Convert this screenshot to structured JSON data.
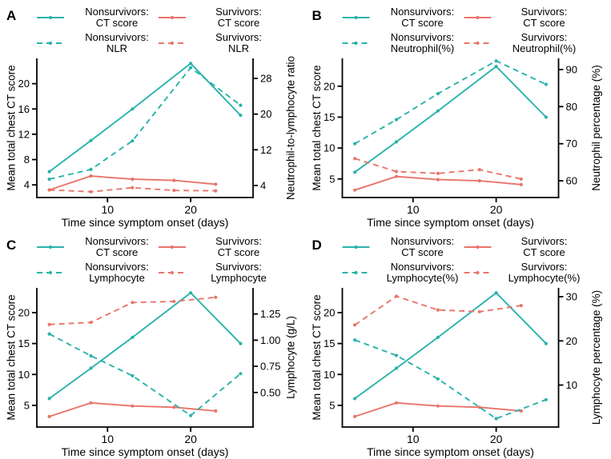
{
  "figure": {
    "background": "#ffffff",
    "text_color": "#000000",
    "colors": {
      "nonsurvivors": "#29b3aa",
      "survivors": "#e8756a"
    },
    "xlabel": "Time since symptom onset (days)",
    "left_ylabel": "Mean total chest CT score"
  },
  "chart_data": [
    {
      "panel_label": "A",
      "type": "line",
      "xlabel": "Time since symptom onset (days)",
      "ylabel_left": "Mean total chest CT score",
      "ylabel_right": "Neutrophil-to-lymphocyte ratio",
      "x_ticks": [
        "10",
        "20"
      ],
      "x_range": [
        1.5,
        27.5
      ],
      "left_ticks": [
        "4",
        "8",
        "12",
        "16",
        "20"
      ],
      "left_range": [
        2,
        24
      ],
      "right_ticks": [
        "4",
        "12",
        "20",
        "28"
      ],
      "right_range": [
        1.3,
        32.5
      ],
      "grid": false,
      "legend_position": "top",
      "legend": [
        {
          "line1": "Nonsurvivors:",
          "line2": "CT score",
          "color": "nonsurvivors",
          "dashed": false
        },
        {
          "line1": "Survivors:",
          "line2": "CT score",
          "color": "survivors",
          "dashed": false
        },
        {
          "line1": "Nonsurvivors:",
          "line2": "NLR",
          "color": "nonsurvivors",
          "dashed": true
        },
        {
          "line1": "Survivors:",
          "line2": "NLR",
          "color": "survivors",
          "dashed": true
        }
      ],
      "series": [
        {
          "name": "Nonsurvivors: CT score",
          "axis": "left",
          "color": "nonsurvivors",
          "dashed": false,
          "x": [
            3,
            8,
            13,
            20,
            26
          ],
          "y": [
            6.1,
            11,
            16,
            23.2,
            15
          ]
        },
        {
          "name": "Survivors: CT score",
          "axis": "left",
          "color": "survivors",
          "dashed": false,
          "x": [
            3,
            8,
            13,
            18,
            23
          ],
          "y": [
            3.2,
            5.4,
            4.9,
            4.7,
            4.1
          ]
        },
        {
          "name": "Nonsurvivors: NLR",
          "axis": "right",
          "color": "nonsurvivors",
          "dashed": true,
          "x": [
            3,
            8,
            13,
            20,
            26
          ],
          "y": [
            5.4,
            7.6,
            14,
            30.4,
            22
          ]
        },
        {
          "name": "Survivors: NLR",
          "axis": "right",
          "color": "survivors",
          "dashed": true,
          "x": [
            3,
            8,
            13,
            18,
            23
          ],
          "y": [
            3.0,
            2.6,
            3.5,
            2.9,
            2.8
          ]
        }
      ]
    },
    {
      "panel_label": "B",
      "type": "line",
      "xlabel": "Time since symptom onset (days)",
      "ylabel_left": "Mean total chest CT score",
      "ylabel_right": "Neutrophil percentage (%)",
      "x_ticks": [
        "10",
        "20"
      ],
      "x_range": [
        1.5,
        27.5
      ],
      "left_ticks": [
        "5",
        "10",
        "15",
        "20"
      ],
      "left_range": [
        2,
        24.5
      ],
      "right_ticks": [
        "60",
        "70",
        "80",
        "90"
      ],
      "right_range": [
        55.5,
        93
      ],
      "grid": false,
      "legend_position": "top",
      "legend": [
        {
          "line1": "Nonsurvivors:",
          "line2": "CT score",
          "color": "nonsurvivors",
          "dashed": false
        },
        {
          "line1": "Survivors:",
          "line2": "CT score",
          "color": "survivors",
          "dashed": false
        },
        {
          "line1": "Nonsurvivors:",
          "line2": "Neutrophil(%)",
          "color": "nonsurvivors",
          "dashed": true
        },
        {
          "line1": "Survivors:",
          "line2": "Neutrophil(%)",
          "color": "survivors",
          "dashed": true
        }
      ],
      "series": [
        {
          "name": "Nonsurvivors: CT score",
          "axis": "left",
          "color": "nonsurvivors",
          "dashed": false,
          "x": [
            3,
            8,
            13,
            20,
            26
          ],
          "y": [
            6.1,
            11,
            16,
            23.2,
            15
          ]
        },
        {
          "name": "Survivors: CT score",
          "axis": "left",
          "color": "survivors",
          "dashed": false,
          "x": [
            3,
            8,
            13,
            18,
            23
          ],
          "y": [
            3.2,
            5.4,
            4.9,
            4.7,
            4.1
          ]
        },
        {
          "name": "Nonsurvivors: Neutrophil(%)",
          "axis": "right",
          "color": "nonsurvivors",
          "dashed": true,
          "x": [
            3,
            8,
            13,
            20,
            26
          ],
          "y": [
            70,
            76.5,
            83.5,
            92.3,
            86
          ]
        },
        {
          "name": "Survivors: Neutrophil(%)",
          "axis": "right",
          "color": "survivors",
          "dashed": true,
          "x": [
            3,
            8,
            13,
            18,
            23
          ],
          "y": [
            66,
            62.5,
            62,
            63,
            60.5
          ]
        }
      ]
    },
    {
      "panel_label": "C",
      "type": "line",
      "xlabel": "Time since symptom onset (days)",
      "ylabel_left": "Mean total chest CT score",
      "ylabel_right": "Lymphocyte (g/L)",
      "x_ticks": [
        "10",
        "20"
      ],
      "x_range": [
        1.5,
        27.5
      ],
      "left_ticks": [
        "5",
        "10",
        "15",
        "20"
      ],
      "left_range": [
        1.5,
        24
      ],
      "right_ticks": [
        "0.50",
        "0.75",
        "1.00",
        "1.25"
      ],
      "right_range": [
        0.17,
        1.5
      ],
      "grid": false,
      "legend_position": "top",
      "legend": [
        {
          "line1": "Nonsurvivors:",
          "line2": "CT score",
          "color": "nonsurvivors",
          "dashed": false
        },
        {
          "line1": "Survivors:",
          "line2": "CT score",
          "color": "survivors",
          "dashed": false
        },
        {
          "line1": "Nonsurvivors:",
          "line2": "Lymphocyte",
          "color": "nonsurvivors",
          "dashed": true
        },
        {
          "line1": "Survivors:",
          "line2": "Lymphocyte",
          "color": "survivors",
          "dashed": true
        }
      ],
      "series": [
        {
          "name": "Nonsurvivors: CT score",
          "axis": "left",
          "color": "nonsurvivors",
          "dashed": false,
          "x": [
            3,
            8,
            13,
            20,
            26
          ],
          "y": [
            6.1,
            11,
            16,
            23.2,
            15
          ]
        },
        {
          "name": "Survivors: CT score",
          "axis": "left",
          "color": "survivors",
          "dashed": false,
          "x": [
            3,
            8,
            13,
            18,
            23
          ],
          "y": [
            3.2,
            5.4,
            4.9,
            4.7,
            4.1
          ]
        },
        {
          "name": "Nonsurvivors: Lymphocyte",
          "axis": "right",
          "color": "nonsurvivors",
          "dashed": true,
          "x": [
            3,
            8,
            13,
            20,
            26
          ],
          "y": [
            1.06,
            0.85,
            0.66,
            0.28,
            0.68
          ]
        },
        {
          "name": "Survivors: Lymphocyte",
          "axis": "right",
          "color": "survivors",
          "dashed": true,
          "x": [
            3,
            8,
            13,
            18,
            23
          ],
          "y": [
            1.15,
            1.17,
            1.36,
            1.37,
            1.41
          ]
        }
      ]
    },
    {
      "panel_label": "D",
      "type": "line",
      "xlabel": "Time since symptom onset (days)",
      "ylabel_left": "Mean total chest CT score",
      "ylabel_right": "Lymphocyte percentage (%)",
      "x_ticks": [
        "10",
        "20"
      ],
      "x_range": [
        1.5,
        27.5
      ],
      "left_ticks": [
        "5",
        "10",
        "15",
        "20"
      ],
      "left_range": [
        1.5,
        24
      ],
      "right_ticks": [
        "10",
        "20",
        "30"
      ],
      "right_range": [
        0.5,
        32
      ],
      "grid": false,
      "legend_position": "top",
      "legend": [
        {
          "line1": "Nonsurvivors:",
          "line2": "CT score",
          "color": "nonsurvivors",
          "dashed": false
        },
        {
          "line1": "Survivors:",
          "line2": "CT score",
          "color": "survivors",
          "dashed": false
        },
        {
          "line1": "Nonsurvivors:",
          "line2": "Lymphocyte(%)",
          "color": "nonsurvivors",
          "dashed": true
        },
        {
          "line1": "Survivors:",
          "line2": "Lymphocyte(%)",
          "color": "survivors",
          "dashed": true
        }
      ],
      "series": [
        {
          "name": "Nonsurvivors: CT score",
          "axis": "left",
          "color": "nonsurvivors",
          "dashed": false,
          "x": [
            3,
            8,
            13,
            20,
            26
          ],
          "y": [
            6.1,
            11,
            16,
            23.2,
            15
          ]
        },
        {
          "name": "Survivors: CT score",
          "axis": "left",
          "color": "survivors",
          "dashed": false,
          "x": [
            3,
            8,
            13,
            18,
            23
          ],
          "y": [
            3.2,
            5.4,
            4.9,
            4.7,
            4.1
          ]
        },
        {
          "name": "Nonsurvivors: Lymphocyte(%)",
          "axis": "right",
          "color": "nonsurvivors",
          "dashed": true,
          "x": [
            3,
            8,
            13,
            20,
            26
          ],
          "y": [
            20.2,
            16.7,
            11.4,
            2.4,
            6.7
          ]
        },
        {
          "name": "Survivors: Lymphocyte(%)",
          "axis": "right",
          "color": "survivors",
          "dashed": true,
          "x": [
            3,
            8,
            13,
            18,
            23
          ],
          "y": [
            23.6,
            30.1,
            27,
            26.6,
            28
          ]
        }
      ]
    }
  ]
}
